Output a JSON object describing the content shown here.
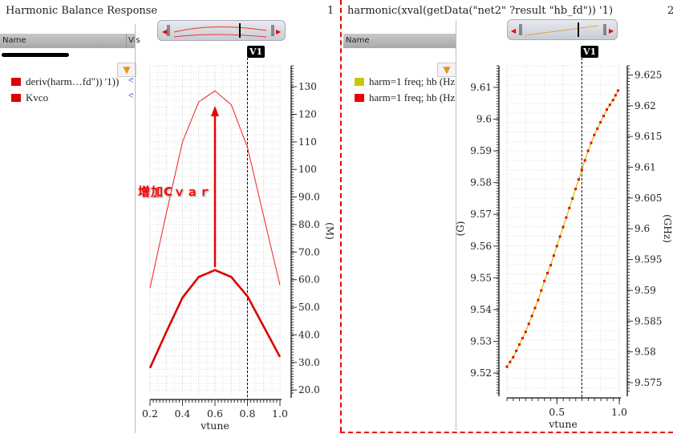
{
  "left_panel": {
    "title": "Harmonic Balance Response",
    "index": "1",
    "columns": {
      "name": "Name",
      "vis": "Vis"
    },
    "legend": [
      {
        "label": "deriv(harm…fd\")) '1))",
        "color": "#e00000"
      },
      {
        "label": "Kvco",
        "color": "#e00000"
      }
    ],
    "cursor_label": "V1",
    "annotation": "增加Cｖａｒ"
  },
  "right_panel": {
    "title": "harmonic(xval(getData(\"net2\" ?result \"hb_fd\")) '1)",
    "index": "2",
    "columns": {
      "name": "Name"
    },
    "legend": [
      {
        "label": "harm=1 freq; hb (Hz",
        "color": "#c8c800"
      },
      {
        "label": "harm=1 freq; hb (Hz",
        "color": "#ee0000"
      }
    ],
    "cursor_label": "V1"
  },
  "chart_data": [
    {
      "type": "line",
      "xlabel": "vtune",
      "ylabel": "(M)",
      "xlim": [
        0.2,
        1.0
      ],
      "ylim": [
        18.3,
        137.6
      ],
      "xticks": [
        0.2,
        0.4,
        0.6,
        0.8,
        1.0
      ],
      "xtick_labels": [
        "0.2",
        "0.4",
        "0.6",
        "0.8",
        "1.0"
      ],
      "yticks": [
        20,
        30,
        40,
        50,
        60,
        70,
        80,
        90,
        100,
        110,
        120,
        130
      ],
      "ytick_labels": [
        "20.0",
        "30.0",
        "40.0",
        "50.0",
        "60.0",
        "70.0",
        "80.0",
        "90.0",
        "100",
        "110",
        "120",
        "130"
      ],
      "cursor_x": 0.8,
      "x": [
        0.2,
        0.3,
        0.4,
        0.5,
        0.6,
        0.7,
        0.8,
        0.9,
        1.0
      ],
      "series": [
        {
          "name": "deriv(harm…fd\")) '1))",
          "color": "#ee2020",
          "width": 1,
          "values": [
            57,
            84,
            110,
            124.5,
            128.5,
            123.5,
            108,
            83,
            58
          ]
        },
        {
          "name": "Kvco",
          "color": "#dd0000",
          "width": 2.6,
          "values": [
            28,
            41,
            53.5,
            61,
            63.5,
            61,
            54,
            43,
            32
          ]
        }
      ]
    },
    {
      "type": "line",
      "xlabel": "vtune",
      "ylabel": "(G)",
      "ylabel_right": "(GHz)",
      "xlim": [
        0.1,
        1.0
      ],
      "ylim": [
        9.5137,
        9.6168
      ],
      "ylim_right": [
        9.5733,
        9.6265
      ],
      "xticks": [
        0.5,
        1.0
      ],
      "xtick_labels": [
        "0.5",
        "1.0"
      ],
      "yticks": [
        9.52,
        9.53,
        9.54,
        9.55,
        9.56,
        9.57,
        9.58,
        9.59,
        9.6,
        9.61
      ],
      "ytick_labels": [
        "9.52",
        "9.53",
        "9.54",
        "9.55",
        "9.56",
        "9.57",
        "9.58",
        "9.59",
        "9.6",
        "9.61"
      ],
      "yticks_right": [
        9.575,
        9.58,
        9.585,
        9.59,
        9.595,
        9.6,
        9.605,
        9.61,
        9.615,
        9.62,
        9.625
      ],
      "ytick_labels_right": [
        "9.575",
        "9.58",
        "9.585",
        "9.59",
        "9.595",
        "9.6",
        "9.605",
        "9.61",
        "9.615",
        "9.62",
        "9.625"
      ],
      "cursor_x": 0.7,
      "x": [
        0.1,
        0.15,
        0.2,
        0.25,
        0.3,
        0.35,
        0.4,
        0.45,
        0.5,
        0.55,
        0.6,
        0.65,
        0.7,
        0.75,
        0.8,
        0.85,
        0.9,
        0.95,
        0.99
      ],
      "series": [
        {
          "name": "harm=1 freq; hb (Hz)",
          "color": "#c8c800",
          "width": 1.2,
          "values": [
            9.522,
            9.525,
            9.529,
            9.533,
            9.538,
            9.543,
            9.549,
            9.554,
            9.56,
            9.566,
            9.572,
            9.578,
            9.584,
            9.59,
            9.595,
            9.599,
            9.603,
            9.606,
            9.609
          ],
          "markers": false
        },
        {
          "name": "harm=1 freq; hb (Hz)",
          "color": "#ee0000",
          "width": 0,
          "values": [
            9.522,
            9.525,
            9.529,
            9.533,
            9.538,
            9.543,
            9.549,
            9.554,
            9.56,
            9.566,
            9.572,
            9.578,
            9.584,
            9.59,
            9.595,
            9.599,
            9.603,
            9.606,
            9.609
          ],
          "markers": true
        }
      ]
    }
  ]
}
